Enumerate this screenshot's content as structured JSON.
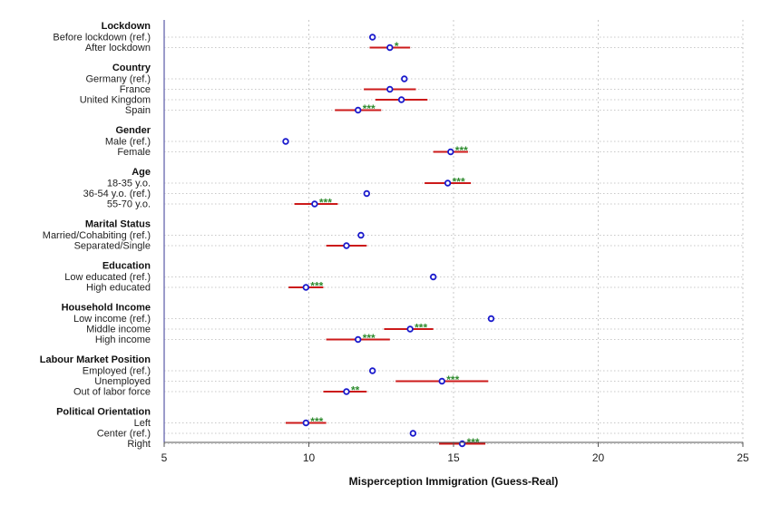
{
  "chart_data": {
    "type": "scatter",
    "xlabel": "Misperception Immigration (Guess-Real)",
    "xlim": [
      5,
      25
    ],
    "xticks": [
      5,
      10,
      15,
      20,
      25
    ],
    "grid": true,
    "colors": {
      "point": "#1a1acc",
      "ci": "#cc1a1a",
      "significance": "#2e8b2e",
      "axis": "#7a7ab8",
      "grid": "#c8c8c8"
    },
    "groups": [
      {
        "header": "Lockdown",
        "rows": [
          {
            "label": "Before lockdown (ref.)",
            "value": 12.2
          },
          {
            "label": "After lockdown",
            "value": 12.8,
            "ci": [
              12.1,
              13.5
            ],
            "sig": "*"
          }
        ]
      },
      {
        "header": "Country",
        "rows": [
          {
            "label": "Germany (ref.)",
            "value": 13.3
          },
          {
            "label": "France",
            "value": 12.8,
            "ci": [
              11.9,
              13.7
            ]
          },
          {
            "label": "United Kingdom",
            "value": 13.2,
            "ci": [
              12.3,
              14.1
            ]
          },
          {
            "label": "Spain",
            "value": 11.7,
            "ci": [
              10.9,
              12.5
            ],
            "sig": "***"
          }
        ]
      },
      {
        "header": "Gender",
        "rows": [
          {
            "label": "Male (ref.)",
            "value": 9.2
          },
          {
            "label": "Female",
            "value": 14.9,
            "ci": [
              14.3,
              15.5
            ],
            "sig": "***"
          }
        ]
      },
      {
        "header": "Age",
        "rows": [
          {
            "label": "18-35 y.o.",
            "value": 14.8,
            "ci": [
              14.0,
              15.6
            ],
            "sig": "***"
          },
          {
            "label": "36-54 y.o. (ref.)",
            "value": 12.0
          },
          {
            "label": "55-70 y.o.",
            "value": 10.2,
            "ci": [
              9.5,
              11.0
            ],
            "sig": "***"
          }
        ]
      },
      {
        "header": "Marital Status",
        "rows": [
          {
            "label": "Married/Cohabiting (ref.)",
            "value": 11.8
          },
          {
            "label": "Separated/Single",
            "value": 11.3,
            "ci": [
              10.6,
              12.0
            ]
          }
        ]
      },
      {
        "header": "Education",
        "rows": [
          {
            "label": "Low educated (ref.)",
            "value": 14.3
          },
          {
            "label": "High educated",
            "value": 9.9,
            "ci": [
              9.3,
              10.5
            ],
            "sig": "***"
          }
        ]
      },
      {
        "header": "Household Income",
        "rows": [
          {
            "label": "Low income (ref.)",
            "value": 16.3
          },
          {
            "label": "Middle income",
            "value": 13.5,
            "ci": [
              12.6,
              14.3
            ],
            "sig": "***"
          },
          {
            "label": "High income",
            "value": 11.7,
            "ci": [
              10.6,
              12.8
            ],
            "sig": "***"
          }
        ]
      },
      {
        "header": "Labour Market Position",
        "rows": [
          {
            "label": "Employed (ref.)",
            "value": 12.2
          },
          {
            "label": "Unemployed",
            "value": 14.6,
            "ci": [
              13.0,
              16.2
            ],
            "sig": "***"
          },
          {
            "label": "Out of labor force",
            "value": 11.3,
            "ci": [
              10.5,
              12.0
            ],
            "sig": "**"
          }
        ]
      },
      {
        "header": "Political Orientation",
        "rows": [
          {
            "label": "Left",
            "value": 9.9,
            "ci": [
              9.2,
              10.6
            ],
            "sig": "***"
          },
          {
            "label": "Center (ref.)",
            "value": 13.6
          },
          {
            "label": "Right",
            "value": 15.3,
            "ci": [
              14.5,
              16.1
            ],
            "sig": "***"
          }
        ]
      }
    ]
  }
}
